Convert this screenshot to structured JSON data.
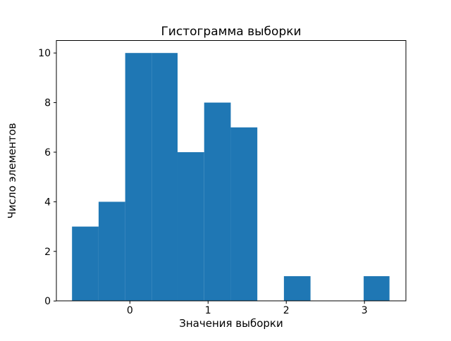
{
  "chart_data": {
    "type": "bar",
    "subtype": "histogram",
    "title": "Гистограмма выборки",
    "xlabel": "Значения выборки",
    "ylabel": "Число элементов",
    "bin_edges": [
      -0.74,
      -0.4,
      -0.06,
      0.28,
      0.61,
      0.95,
      1.29,
      1.63,
      1.97,
      2.31,
      2.65,
      2.99,
      3.32
    ],
    "counts": [
      3,
      4,
      10,
      10,
      6,
      8,
      7,
      0,
      1,
      0,
      0,
      1
    ],
    "n_samples": 50,
    "xlim": [
      -0.94,
      3.53
    ],
    "ylim": [
      0,
      10.5
    ],
    "xticks": [
      0,
      1,
      2,
      3
    ],
    "yticks": [
      0,
      2,
      4,
      6,
      8,
      10
    ],
    "bar_color": "#1f77b4",
    "axis_color": "#000000",
    "background": "#ffffff",
    "grid": false,
    "legend": null
  }
}
